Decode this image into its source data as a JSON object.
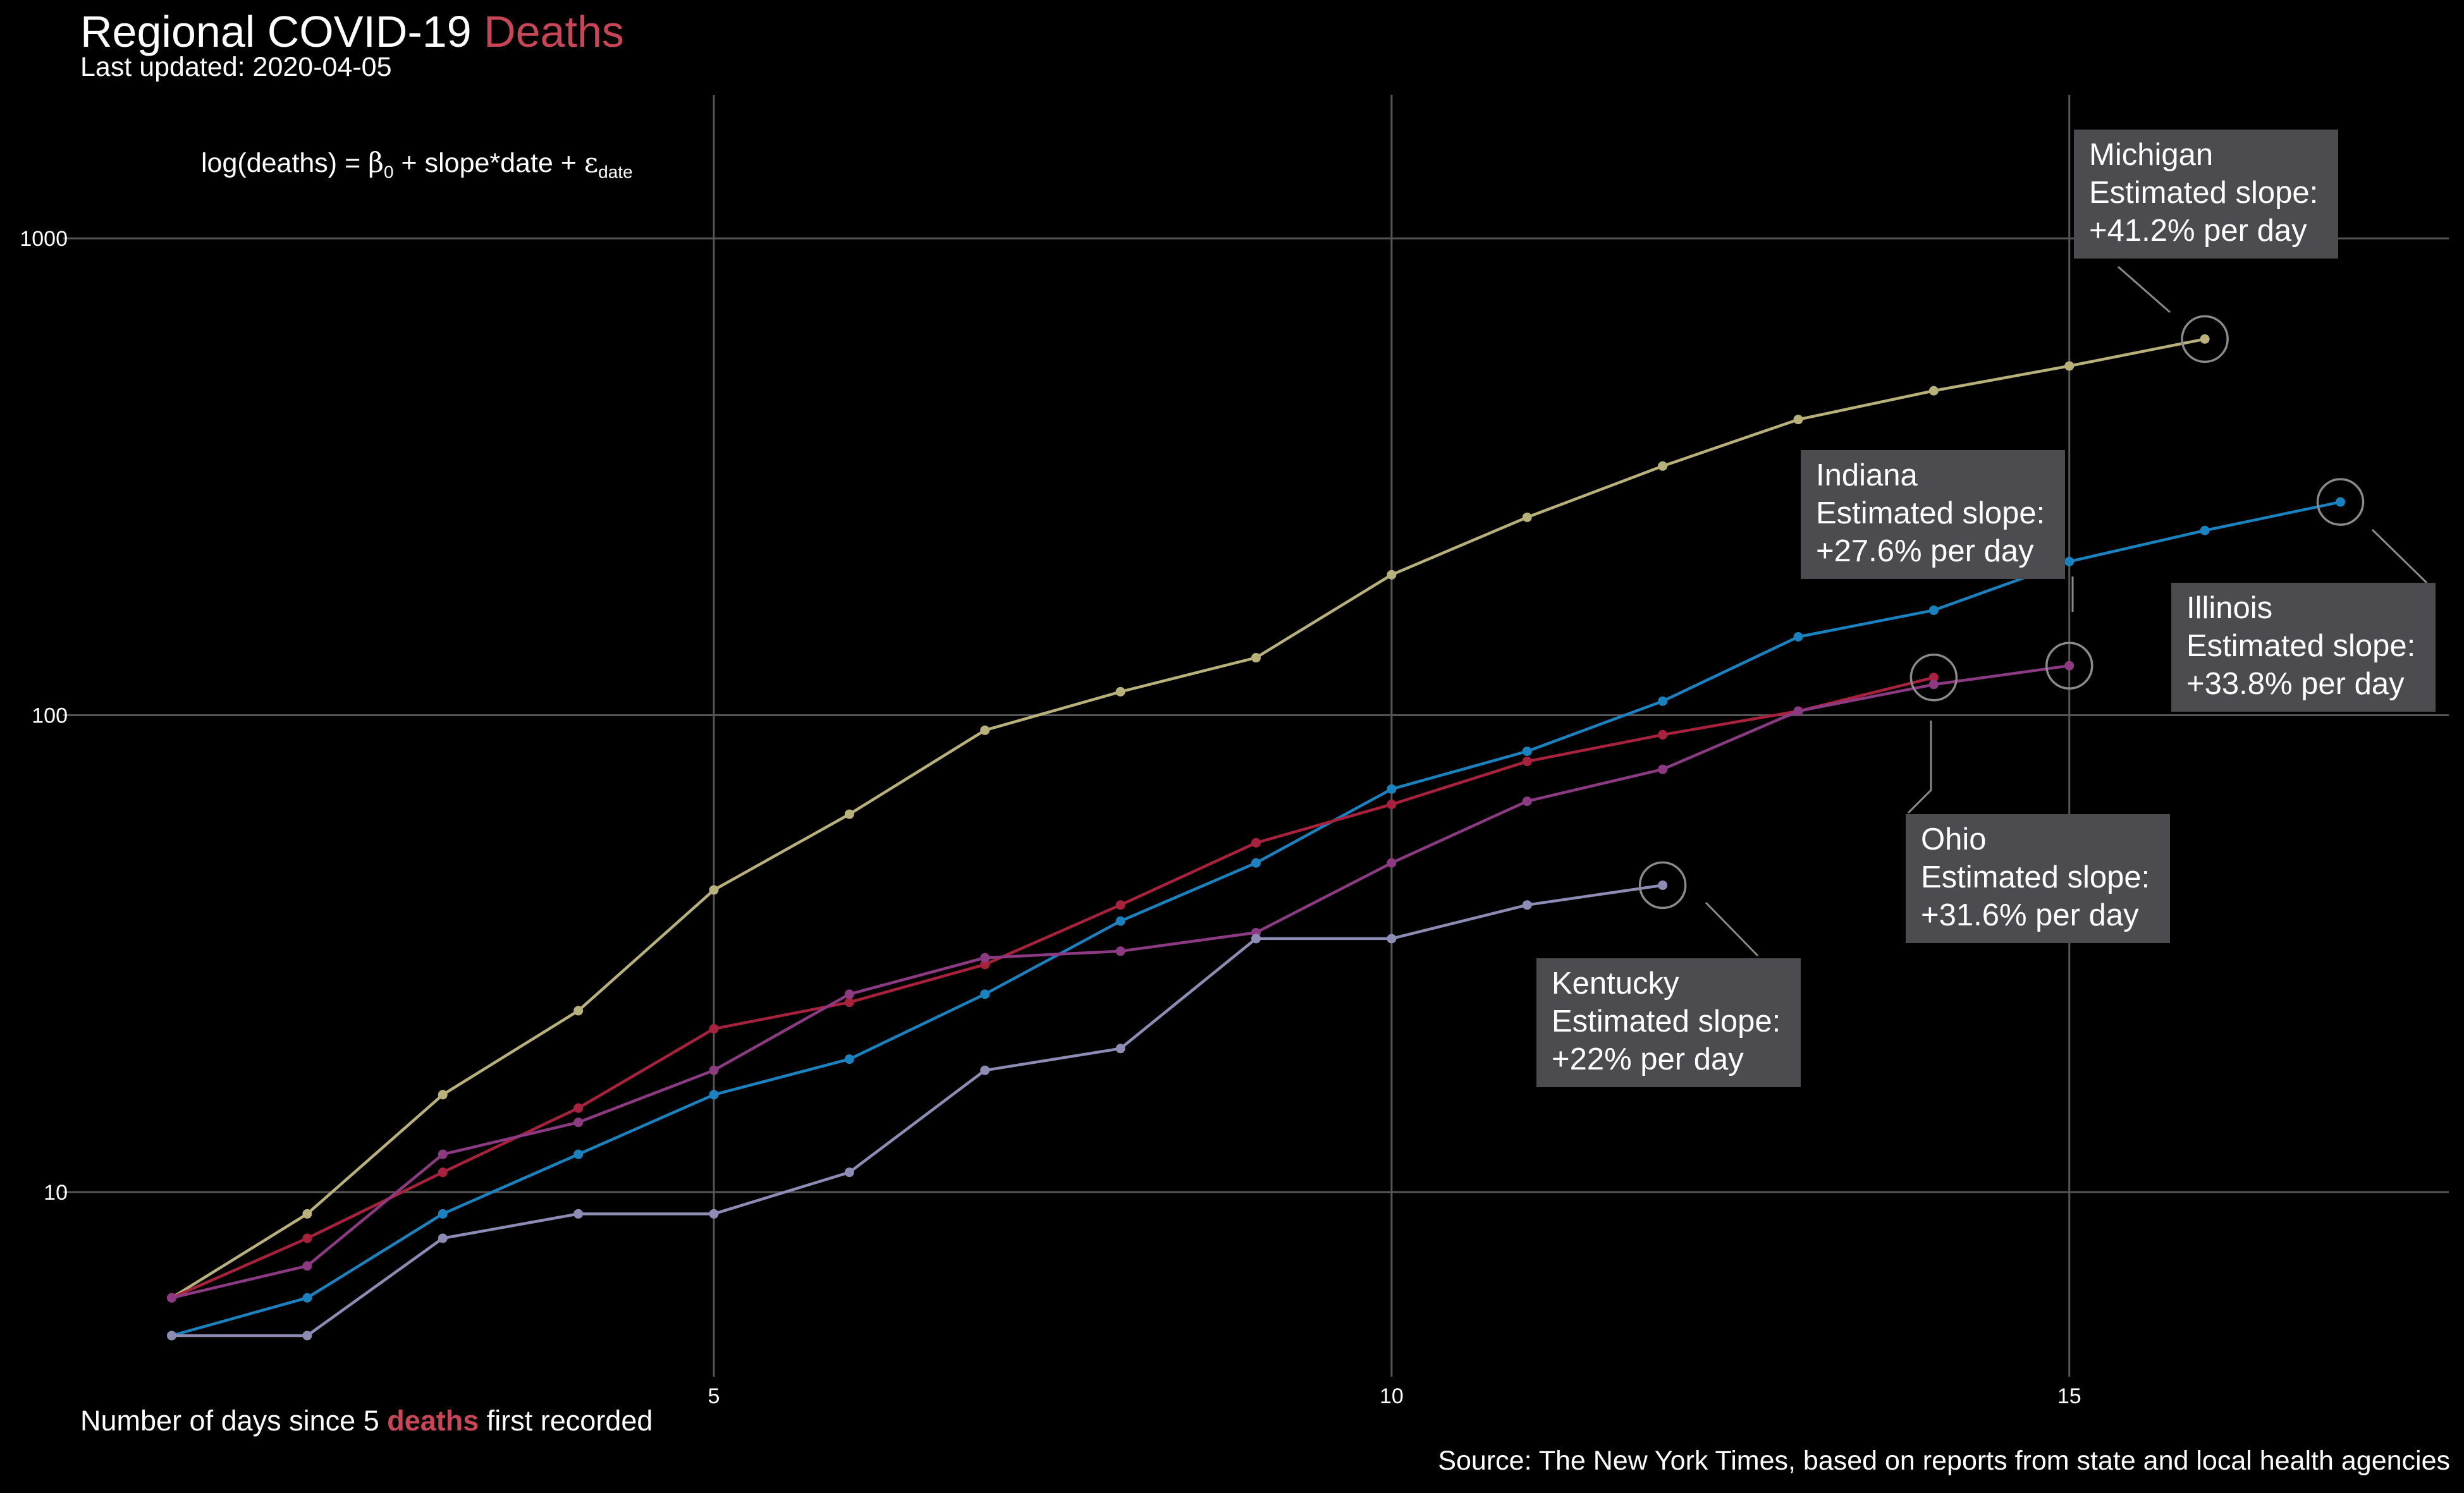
{
  "header": {
    "title_prefix": "Regional COVID-19 ",
    "title_highlight": "Deaths",
    "subtitle": "Last updated: 2020-04-05"
  },
  "formula": {
    "lhs": "log(deaths)",
    "eq": " = ",
    "beta": "β",
    "beta_sub": "0",
    "plus1": " + ",
    "mid": "slope*date",
    "plus2": " + ",
    "eps": "ε",
    "eps_sub": "date"
  },
  "footer": {
    "xcaption_prefix": "Number of days since 5 ",
    "xcaption_highlight": "deaths",
    "xcaption_suffix": " first recorded",
    "source": "Source: The New York Times, based on reports from state and local health agencies"
  },
  "colors": {
    "highlight": "#c94657",
    "grid": "#555555",
    "label_bg": "#4c4c50"
  },
  "chart_data": {
    "type": "line",
    "y_scale": "log10",
    "xlim": [
      0.2,
      17.8
    ],
    "ylim": [
      4.1,
      2000
    ],
    "x_ticks": [
      5,
      10,
      15
    ],
    "y_ticks": [
      10,
      100,
      1000
    ],
    "grid": true,
    "legend": "none",
    "series": [
      {
        "name": "Michigan",
        "color": "#b8b27a",
        "x": [
          1,
          2,
          3,
          4,
          5,
          6,
          7,
          8,
          9,
          10,
          11,
          12,
          13,
          14,
          15,
          16
        ],
        "values": [
          6,
          9,
          16,
          24,
          43,
          62,
          93,
          112,
          132,
          197,
          260,
          333,
          417,
          479,
          540,
          615
        ],
        "label_lines": [
          "Michigan",
          "Estimated slope:",
          "+41.2% per day"
        ]
      },
      {
        "name": "Illinois",
        "color": "#1b82c0",
        "x": [
          1,
          2,
          3,
          4,
          5,
          6,
          7,
          8,
          9,
          10,
          11,
          12,
          13,
          14,
          15,
          16,
          17
        ],
        "values": [
          5,
          6,
          9,
          12,
          16,
          19,
          26,
          37,
          49,
          70,
          84,
          107,
          146,
          166,
          210,
          244,
          280
        ],
        "label_lines": [
          "Illinois",
          "Estimated slope:",
          "+33.8% per day"
        ]
      },
      {
        "name": "Indiana",
        "color": "#a8223e",
        "x": [
          1,
          2,
          3,
          4,
          5,
          6,
          7,
          8,
          9,
          10,
          11,
          12,
          13,
          14
        ],
        "values": [
          6,
          8,
          11,
          15,
          22,
          25,
          30,
          40,
          54,
          65,
          80,
          91,
          102,
          120
        ],
        "label_lines": [
          "Indiana",
          "Estimated slope:",
          "+27.6% per day"
        ]
      },
      {
        "name": "Ohio",
        "color": "#8c3a82",
        "x": [
          1,
          2,
          3,
          4,
          5,
          6,
          7,
          8,
          9,
          10,
          11,
          12,
          13,
          14,
          15
        ],
        "values": [
          6,
          7,
          12,
          14,
          18,
          26,
          31,
          32,
          35,
          49,
          66,
          77,
          102,
          116,
          127
        ],
        "label_lines": [
          "Ohio",
          "Estimated slope:",
          "+31.6% per day"
        ]
      },
      {
        "name": "Kentucky",
        "color": "#8c8cb4",
        "x": [
          1,
          2,
          3,
          4,
          5,
          6,
          7,
          8,
          9,
          10,
          11,
          12
        ],
        "values": [
          5,
          5,
          8,
          9,
          9,
          11,
          18,
          20,
          34,
          34,
          40,
          44
        ],
        "label_lines": [
          "Kentucky",
          "Estimated slope:",
          "+22% per day"
        ]
      }
    ]
  }
}
